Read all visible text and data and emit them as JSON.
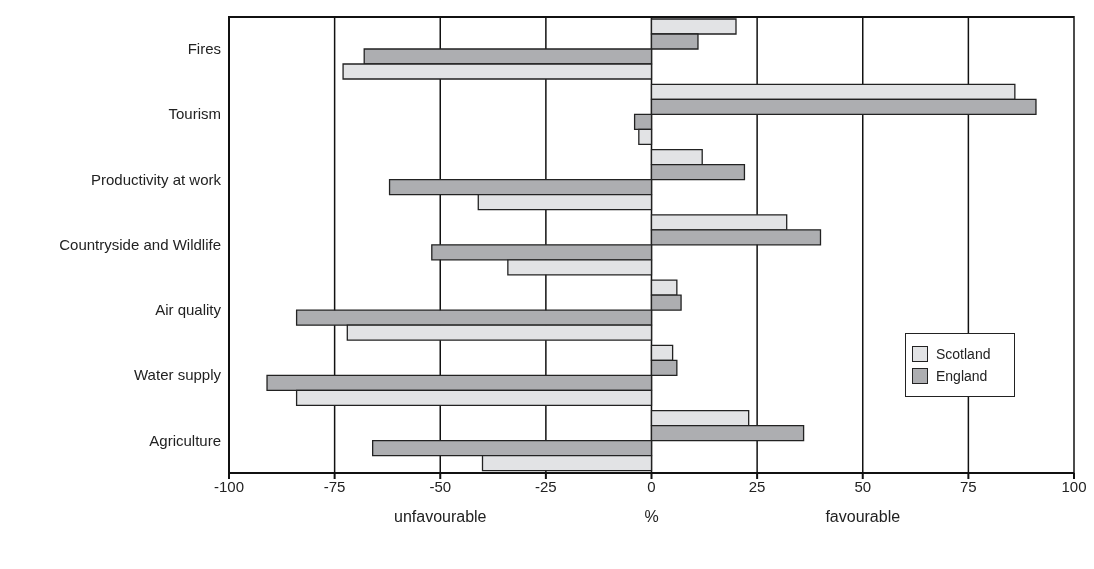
{
  "chart_data": {
    "type": "bar",
    "orientation": "horizontal",
    "categories": [
      "Fires",
      "Tourism",
      "Productivity at work",
      "Countryside and Wildlife",
      "Air quality",
      "Water supply",
      "Agriculture"
    ],
    "series": [
      {
        "name": "Scotland",
        "color": "#e2e3e5",
        "values": [
          20,
          86,
          12,
          32,
          6,
          5,
          23
        ]
      },
      {
        "name": "England",
        "color": "#adaeb1",
        "values": [
          11,
          91,
          22,
          40,
          7,
          6,
          36
        ]
      },
      {
        "color": "#adaeb1",
        "values": [
          -68,
          -4,
          -62,
          -52,
          -84,
          -91,
          -66
        ]
      },
      {
        "color": "#e2e3e5",
        "values": [
          -73,
          -3,
          -41,
          -34,
          -72,
          -84,
          -40
        ]
      }
    ],
    "xlim": [
      -100,
      100
    ],
    "xticks": [
      -100,
      -75,
      -50,
      -25,
      0,
      25,
      50,
      75,
      100
    ],
    "xlabel": "%",
    "annotations": [
      "unfavourable",
      "favourable"
    ],
    "grid": "x",
    "legend": "right"
  }
}
